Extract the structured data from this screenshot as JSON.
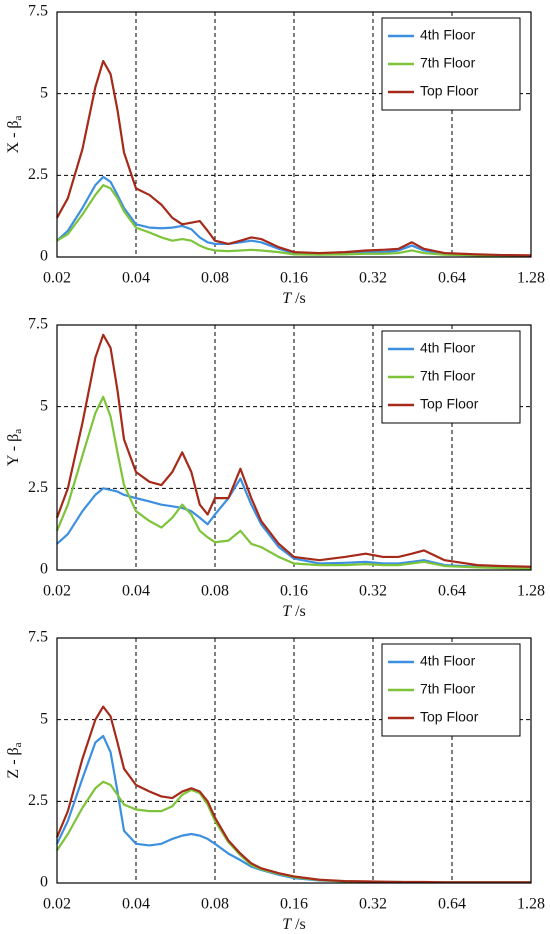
{
  "chart_data": [
    {
      "type": "line",
      "xscale": "log",
      "grid": true,
      "legend": "upper right",
      "ylabel": "X - β",
      "ylabel_sub": "a",
      "xlabel": "T",
      "xlabel_unit": " /s",
      "xlim": [
        0.02,
        1.28
      ],
      "xticks": [
        0.02,
        0.04,
        0.08,
        0.16,
        0.32,
        0.64,
        1.28
      ],
      "ylim": [
        0,
        7.5
      ],
      "yticks": [
        0,
        2.5,
        5,
        7.5
      ],
      "x": [
        0.02,
        0.022,
        0.025,
        0.028,
        0.03,
        0.032,
        0.034,
        0.036,
        0.04,
        0.045,
        0.05,
        0.055,
        0.06,
        0.065,
        0.07,
        0.075,
        0.08,
        0.09,
        0.1,
        0.11,
        0.12,
        0.14,
        0.16,
        0.2,
        0.25,
        0.3,
        0.35,
        0.4,
        0.45,
        0.5,
        0.6,
        0.8,
        1.0,
        1.28
      ],
      "series": [
        {
          "name": "4th Floor",
          "color": "#3d8fe0",
          "values": [
            0.5,
            0.8,
            1.5,
            2.2,
            2.45,
            2.3,
            1.9,
            1.5,
            1.0,
            0.9,
            0.88,
            0.9,
            0.95,
            0.85,
            0.6,
            0.45,
            0.4,
            0.4,
            0.45,
            0.5,
            0.45,
            0.25,
            0.12,
            0.1,
            0.12,
            0.15,
            0.15,
            0.2,
            0.35,
            0.2,
            0.1,
            0.06,
            0.05,
            0.04
          ]
        },
        {
          "name": "7th Floor",
          "color": "#7dc43a",
          "values": [
            0.5,
            0.7,
            1.3,
            1.9,
            2.2,
            2.1,
            1.8,
            1.4,
            0.9,
            0.75,
            0.6,
            0.5,
            0.55,
            0.5,
            0.35,
            0.25,
            0.2,
            0.18,
            0.2,
            0.22,
            0.2,
            0.15,
            0.08,
            0.07,
            0.08,
            0.1,
            0.1,
            0.12,
            0.2,
            0.12,
            0.07,
            0.05,
            0.04,
            0.03
          ]
        },
        {
          "name": "Top Floor",
          "color": "#a52a1a",
          "values": [
            1.2,
            1.8,
            3.3,
            5.2,
            6.0,
            5.6,
            4.5,
            3.2,
            2.1,
            1.9,
            1.6,
            1.2,
            1.0,
            1.05,
            1.1,
            0.8,
            0.5,
            0.4,
            0.5,
            0.6,
            0.55,
            0.3,
            0.15,
            0.12,
            0.15,
            0.2,
            0.22,
            0.25,
            0.45,
            0.25,
            0.12,
            0.08,
            0.06,
            0.05
          ]
        }
      ]
    },
    {
      "type": "line",
      "xscale": "log",
      "grid": true,
      "legend": "upper right",
      "ylabel": "Y - β",
      "ylabel_sub": "a",
      "xlabel": "T",
      "xlabel_unit": " /s",
      "xlim": [
        0.02,
        1.28
      ],
      "xticks": [
        0.02,
        0.04,
        0.08,
        0.16,
        0.32,
        0.64,
        1.28
      ],
      "ylim": [
        0,
        7.5
      ],
      "yticks": [
        0,
        2.5,
        5,
        7.5
      ],
      "x": [
        0.02,
        0.022,
        0.025,
        0.028,
        0.03,
        0.032,
        0.034,
        0.036,
        0.04,
        0.045,
        0.05,
        0.055,
        0.06,
        0.065,
        0.07,
        0.075,
        0.08,
        0.09,
        0.1,
        0.11,
        0.12,
        0.14,
        0.16,
        0.2,
        0.25,
        0.3,
        0.35,
        0.4,
        0.45,
        0.5,
        0.6,
        0.8,
        1.0,
        1.28
      ],
      "series": [
        {
          "name": "4th Floor",
          "color": "#3d8fe0",
          "values": [
            0.8,
            1.1,
            1.8,
            2.3,
            2.5,
            2.45,
            2.4,
            2.3,
            2.2,
            2.1,
            2.0,
            1.95,
            1.9,
            1.8,
            1.6,
            1.4,
            1.7,
            2.2,
            2.8,
            2.0,
            1.4,
            0.7,
            0.35,
            0.2,
            0.22,
            0.25,
            0.2,
            0.2,
            0.25,
            0.3,
            0.15,
            0.1,
            0.08,
            0.07
          ]
        },
        {
          "name": "7th Floor",
          "color": "#7dc43a",
          "values": [
            1.2,
            2.0,
            3.5,
            4.8,
            5.3,
            4.7,
            3.6,
            2.6,
            1.8,
            1.5,
            1.3,
            1.6,
            2.0,
            1.7,
            1.2,
            1.0,
            0.85,
            0.9,
            1.2,
            0.8,
            0.7,
            0.4,
            0.2,
            0.15,
            0.15,
            0.18,
            0.15,
            0.15,
            0.2,
            0.25,
            0.12,
            0.08,
            0.06,
            0.05
          ]
        },
        {
          "name": "Top Floor",
          "color": "#a52a1a",
          "values": [
            1.6,
            2.5,
            4.5,
            6.5,
            7.2,
            6.8,
            5.5,
            4.0,
            3.0,
            2.7,
            2.6,
            3.0,
            3.6,
            3.0,
            2.0,
            1.7,
            2.2,
            2.2,
            3.1,
            2.2,
            1.5,
            0.8,
            0.4,
            0.3,
            0.4,
            0.5,
            0.4,
            0.4,
            0.5,
            0.6,
            0.3,
            0.15,
            0.12,
            0.1
          ]
        }
      ]
    },
    {
      "type": "line",
      "xscale": "log",
      "grid": true,
      "legend": "upper right",
      "ylabel": "Z - β",
      "ylabel_sub": "a",
      "xlabel": "T",
      "xlabel_unit": " /s",
      "xlim": [
        0.02,
        1.28
      ],
      "xticks": [
        0.02,
        0.04,
        0.08,
        0.16,
        0.32,
        0.64,
        1.28
      ],
      "ylim": [
        0,
        7.5
      ],
      "yticks": [
        0,
        2.5,
        5,
        7.5
      ],
      "x": [
        0.02,
        0.022,
        0.025,
        0.028,
        0.03,
        0.032,
        0.034,
        0.036,
        0.04,
        0.045,
        0.05,
        0.055,
        0.06,
        0.065,
        0.07,
        0.075,
        0.08,
        0.09,
        0.1,
        0.11,
        0.12,
        0.14,
        0.16,
        0.2,
        0.25,
        0.3,
        0.35,
        0.4,
        0.45,
        0.5,
        0.6,
        0.8,
        1.0,
        1.28
      ],
      "series": [
        {
          "name": "4th Floor",
          "color": "#3d8fe0",
          "values": [
            1.2,
            1.9,
            3.2,
            4.3,
            4.5,
            4.0,
            2.8,
            1.6,
            1.2,
            1.15,
            1.2,
            1.35,
            1.45,
            1.5,
            1.45,
            1.35,
            1.2,
            0.9,
            0.7,
            0.5,
            0.4,
            0.25,
            0.15,
            0.08,
            0.05,
            0.04,
            0.03,
            0.03,
            0.02,
            0.02,
            0.02,
            0.02,
            0.02,
            0.02
          ]
        },
        {
          "name": "7th Floor",
          "color": "#7dc43a",
          "values": [
            1.0,
            1.5,
            2.3,
            2.9,
            3.1,
            3.0,
            2.7,
            2.4,
            2.25,
            2.2,
            2.2,
            2.35,
            2.7,
            2.85,
            2.75,
            2.4,
            1.9,
            1.25,
            0.85,
            0.55,
            0.42,
            0.28,
            0.18,
            0.09,
            0.05,
            0.04,
            0.03,
            0.03,
            0.02,
            0.02,
            0.02,
            0.02,
            0.02,
            0.02
          ]
        },
        {
          "name": "Top Floor",
          "color": "#a52a1a",
          "values": [
            1.4,
            2.2,
            3.8,
            5.0,
            5.4,
            5.1,
            4.3,
            3.5,
            3.0,
            2.8,
            2.65,
            2.6,
            2.8,
            2.9,
            2.8,
            2.5,
            2.0,
            1.3,
            0.9,
            0.6,
            0.45,
            0.3,
            0.2,
            0.1,
            0.06,
            0.05,
            0.04,
            0.03,
            0.03,
            0.03,
            0.02,
            0.02,
            0.02,
            0.02
          ]
        }
      ]
    }
  ]
}
